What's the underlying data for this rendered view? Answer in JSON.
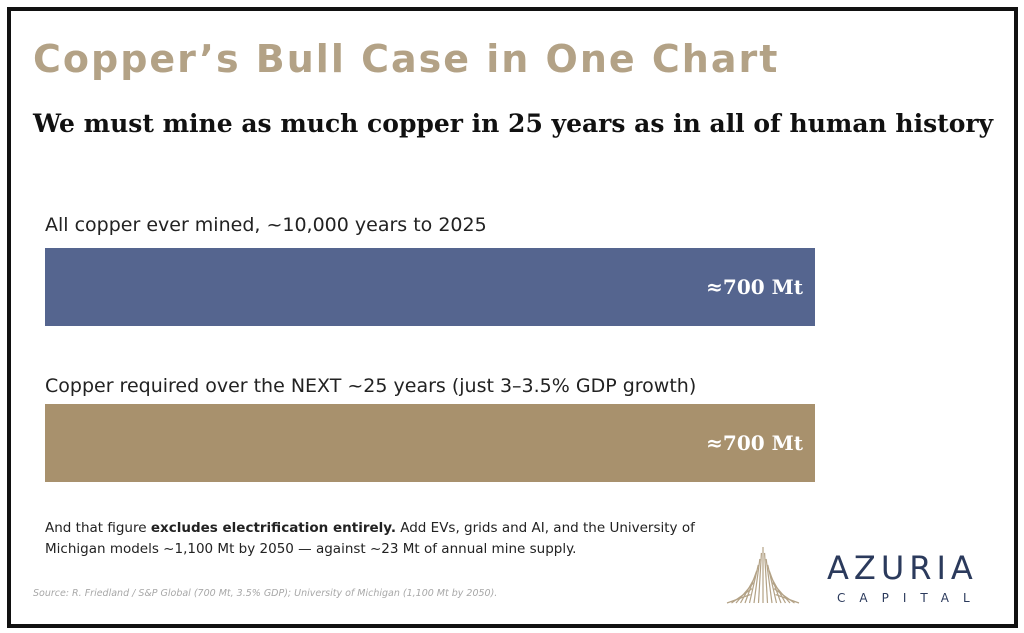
{
  "title": "Copper’s Bull Case in One Chart",
  "subtitle": "We must mine as much copper in 25 years as in all of human history",
  "chart_data": {
    "type": "bar",
    "orientation": "horizontal",
    "categories": [
      "All copper ever mined, ~10,000 years to 2025",
      "Copper required over the NEXT ~25 years (just 3–3.5% GDP growth)"
    ],
    "values": [
      700,
      700
    ],
    "value_labels": [
      "≈700 Mt",
      "≈700 Mt"
    ],
    "colors": [
      "#55658f",
      "#a8916d"
    ],
    "xlim": [
      0,
      700
    ],
    "grid": false,
    "legend": "none"
  },
  "footnote": {
    "intro": "And that figure ",
    "bold": "excludes electrification entirely.",
    "rest": "  Add EVs, grids and AI, and the University of Michigan models ~1,100 Mt by 2050 — against ~23 Mt of annual mine supply."
  },
  "source": "Source: R. Friedland / S&P Global (700 Mt, 3.5% GDP); University of Michigan (1,100 Mt by 2050).",
  "logo": {
    "name": "AZURIA",
    "sub": "CAPITAL",
    "colors": {
      "mark": "#b3a286",
      "text": "#2b3a5c"
    }
  }
}
